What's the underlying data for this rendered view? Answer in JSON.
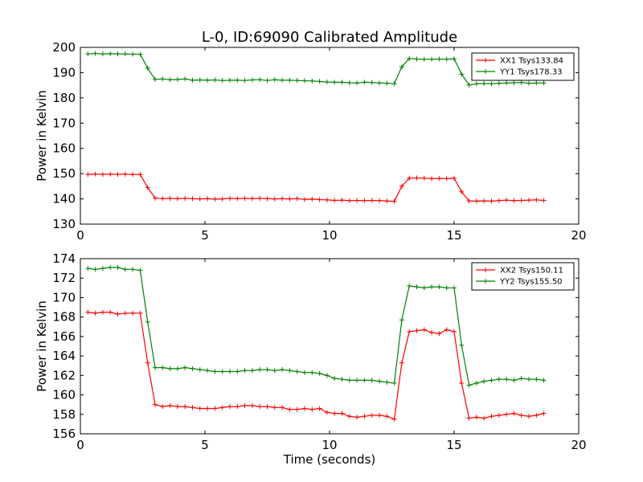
{
  "chart_data": [
    {
      "type": "line",
      "title": "L-0, ID:69090 Calibrated Amplitude",
      "xlabel": "",
      "ylabel": "Power in Kelvin",
      "xlim": [
        0,
        20
      ],
      "ylim": [
        130,
        200
      ],
      "xticks": [
        0,
        5,
        10,
        15,
        20
      ],
      "yticks": [
        130,
        140,
        150,
        160,
        170,
        180,
        190,
        200
      ],
      "grid": false,
      "legend_position": "top-right",
      "x": [
        0.3,
        0.6,
        0.9,
        1.2,
        1.5,
        1.8,
        2.1,
        2.4,
        2.7,
        3.0,
        3.3,
        3.6,
        3.9,
        4.2,
        4.5,
        4.8,
        5.1,
        5.4,
        5.7,
        6.0,
        6.3,
        6.6,
        6.9,
        7.2,
        7.5,
        7.8,
        8.1,
        8.4,
        8.7,
        9.0,
        9.3,
        9.6,
        9.9,
        10.2,
        10.5,
        10.8,
        11.1,
        11.4,
        11.7,
        12.0,
        12.3,
        12.6,
        12.9,
        13.2,
        13.5,
        13.8,
        14.1,
        14.4,
        14.7,
        15.0,
        15.3,
        15.6,
        15.9,
        16.2,
        16.5,
        16.8,
        17.1,
        17.4,
        17.7,
        18.0,
        18.3,
        18.6
      ],
      "series": [
        {
          "name": "XX1 Tsys133.84",
          "color": "#ff0000",
          "values": [
            149.7,
            149.8,
            149.7,
            149.8,
            149.7,
            149.8,
            149.7,
            149.7,
            144.5,
            140.3,
            140.1,
            140.2,
            140.1,
            140.2,
            140.1,
            140.0,
            140.1,
            139.9,
            140.0,
            140.2,
            140.1,
            140.2,
            140.1,
            140.2,
            140.1,
            140.0,
            140.1,
            140.0,
            140.1,
            139.8,
            139.9,
            139.7,
            139.6,
            139.4,
            139.5,
            139.3,
            139.4,
            139.3,
            139.4,
            139.3,
            139.2,
            139.0,
            145.0,
            148.2,
            148.3,
            148.2,
            148.0,
            148.1,
            148.0,
            148.2,
            142.8,
            139.2,
            139.1,
            139.2,
            139.1,
            139.3,
            139.5,
            139.3,
            139.4,
            139.5,
            139.6,
            139.4
          ]
        },
        {
          "name": "YY1 Tsys178.33",
          "color": "#008000",
          "values": [
            197.4,
            197.6,
            197.4,
            197.5,
            197.4,
            197.4,
            197.3,
            197.3,
            191.8,
            187.3,
            187.5,
            187.2,
            187.3,
            187.5,
            187.0,
            187.1,
            187.0,
            187.1,
            186.9,
            187.0,
            187.0,
            186.9,
            187.1,
            187.2,
            186.9,
            187.2,
            187.0,
            187.0,
            186.9,
            186.8,
            186.7,
            186.5,
            186.3,
            186.2,
            186.2,
            186.0,
            185.9,
            186.2,
            186.1,
            185.9,
            185.8,
            185.6,
            192.3,
            195.6,
            195.4,
            195.3,
            195.3,
            195.4,
            195.3,
            195.5,
            189.4,
            185.1,
            185.6,
            185.7,
            185.6,
            185.8,
            185.9,
            186.0,
            186.1,
            185.8,
            185.9,
            185.9
          ]
        }
      ]
    },
    {
      "type": "line",
      "title": "",
      "xlabel": "Time (seconds)",
      "ylabel": "Power in Kelvin",
      "xlim": [
        0,
        20
      ],
      "ylim": [
        156,
        174
      ],
      "xticks": [
        0,
        5,
        10,
        15,
        20
      ],
      "yticks": [
        156,
        158,
        160,
        162,
        164,
        166,
        168,
        170,
        172,
        174
      ],
      "grid": false,
      "legend_position": "top-right",
      "x": [
        0.3,
        0.6,
        0.9,
        1.2,
        1.5,
        1.8,
        2.1,
        2.4,
        2.7,
        3.0,
        3.3,
        3.6,
        3.9,
        4.2,
        4.5,
        4.8,
        5.1,
        5.4,
        5.7,
        6.0,
        6.3,
        6.6,
        6.9,
        7.2,
        7.5,
        7.8,
        8.1,
        8.4,
        8.7,
        9.0,
        9.3,
        9.6,
        9.9,
        10.2,
        10.5,
        10.8,
        11.1,
        11.4,
        11.7,
        12.0,
        12.3,
        12.6,
        12.9,
        13.2,
        13.5,
        13.8,
        14.1,
        14.4,
        14.7,
        15.0,
        15.3,
        15.6,
        15.9,
        16.2,
        16.5,
        16.8,
        17.1,
        17.4,
        17.7,
        18.0,
        18.3,
        18.6
      ],
      "series": [
        {
          "name": "XX2 Tsys150.11",
          "color": "#ff0000",
          "values": [
            168.5,
            168.4,
            168.5,
            168.5,
            168.3,
            168.4,
            168.4,
            168.4,
            163.3,
            159.0,
            158.8,
            158.9,
            158.8,
            158.8,
            158.7,
            158.6,
            158.6,
            158.6,
            158.7,
            158.8,
            158.8,
            158.9,
            158.9,
            158.8,
            158.8,
            158.7,
            158.7,
            158.5,
            158.5,
            158.6,
            158.5,
            158.6,
            158.2,
            158.1,
            158.1,
            157.8,
            157.7,
            157.8,
            157.9,
            157.9,
            157.8,
            157.5,
            163.3,
            166.5,
            166.6,
            166.7,
            166.4,
            166.3,
            166.7,
            166.5,
            161.2,
            157.6,
            157.7,
            157.6,
            157.8,
            157.9,
            158.0,
            158.1,
            157.9,
            157.8,
            157.9,
            158.1
          ]
        },
        {
          "name": "YY2 Tsys155.50",
          "color": "#008000",
          "values": [
            173.0,
            172.9,
            173.0,
            173.1,
            173.1,
            172.9,
            172.9,
            172.8,
            167.5,
            162.8,
            162.8,
            162.7,
            162.7,
            162.8,
            162.7,
            162.6,
            162.5,
            162.4,
            162.4,
            162.4,
            162.4,
            162.5,
            162.5,
            162.6,
            162.6,
            162.5,
            162.6,
            162.5,
            162.4,
            162.3,
            162.3,
            162.2,
            162.0,
            161.7,
            161.6,
            161.5,
            161.5,
            161.5,
            161.5,
            161.4,
            161.3,
            161.2,
            167.7,
            171.2,
            171.1,
            171.0,
            171.1,
            171.1,
            171.0,
            171.0,
            165.1,
            161.0,
            161.2,
            161.4,
            161.5,
            161.6,
            161.6,
            161.5,
            161.7,
            161.6,
            161.6,
            161.5
          ]
        }
      ]
    }
  ]
}
